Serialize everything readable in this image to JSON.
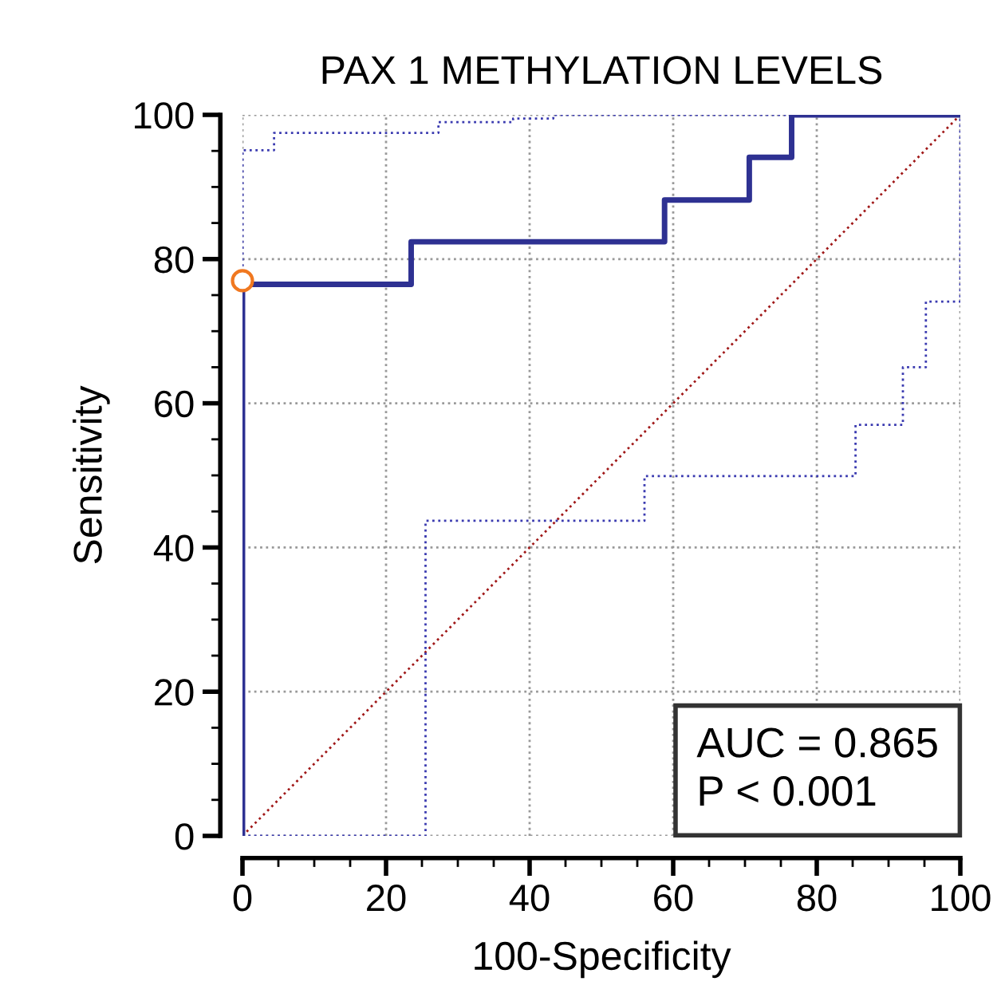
{
  "chart_data": {
    "type": "line",
    "title": "PAX 1 METHYLATION LEVELS",
    "xlabel": "100-Specificity",
    "ylabel": "Sensitivity",
    "xlim": [
      0,
      100
    ],
    "ylim": [
      0,
      100
    ],
    "xticks": [
      0,
      20,
      40,
      60,
      80,
      100
    ],
    "yticks": [
      0,
      20,
      40,
      60,
      80,
      100
    ],
    "grid": true,
    "legend": false,
    "series": [
      {
        "color": "#a01818",
        "line_style": "dotted",
        "x": [
          0,
          100
        ],
        "values": [
          0,
          100
        ]
      },
      {
        "color": "#3a3ab0",
        "line_style": "dotted",
        "x": [
          0,
          0,
          4.4,
          4.4,
          27.3,
          27.3,
          37.7,
          37.7,
          43.3,
          43.3,
          100
        ],
        "values": [
          0,
          95.1,
          95.1,
          97.5,
          97.5,
          99,
          99,
          99.5,
          99.5,
          100,
          100
        ]
      },
      {
        "color": "#3a3ab0",
        "line_style": "dotted",
        "x": [
          0,
          25.5,
          25.5,
          56,
          56,
          85.4,
          85.4,
          92,
          92,
          95.2,
          95.2,
          100,
          100
        ],
        "values": [
          0,
          0,
          43.7,
          43.7,
          49.9,
          49.9,
          57,
          57,
          65,
          65,
          74.1,
          74.1,
          100
        ]
      },
      {
        "color": "#2e3192",
        "line_style": "solid",
        "x": [
          0,
          0,
          23.5,
          23.5,
          58.8,
          58.8,
          70.6,
          70.6,
          76.5,
          76.5,
          100
        ],
        "values": [
          0,
          76.5,
          76.5,
          82.4,
          82.4,
          88.2,
          88.2,
          94.1,
          94.1,
          100,
          100
        ]
      },
      {
        "type": "scatter",
        "marker": "circle",
        "color": "#f07820",
        "x": [
          0
        ],
        "values": [
          77
        ]
      }
    ],
    "annotations": [
      "AUC = 0.865",
      "P < 0.001"
    ]
  }
}
